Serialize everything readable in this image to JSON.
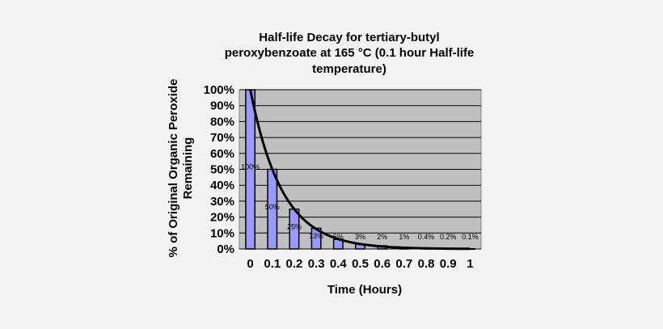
{
  "chart_data": {
    "type": "bar",
    "title": [
      "Half-life  Decay  for tertiary-butyl",
      "peroxybenzoate at 165 °C (0.1 hour Half-life",
      "temperature)"
    ],
    "xlabel": "Time  (Hours)",
    "ylabel": [
      "% of Original Organic Peroxide",
      "Remaining"
    ],
    "categories": [
      "0",
      "0.1",
      "0.2",
      "0.3",
      "0.4",
      "0.5",
      "0.6",
      "0.7",
      "0.8",
      "0.9",
      "1"
    ],
    "values": [
      100,
      50,
      25,
      13,
      6,
      3,
      2,
      1,
      0.4,
      0.2,
      0.1
    ],
    "data_labels": [
      "100%",
      "50%",
      "25%",
      "13%",
      "6%",
      "3%",
      "2%",
      "1%",
      "0.4%",
      "0.2%",
      "0.1%"
    ],
    "yticks": [
      "0%",
      "10%",
      "20%",
      "30%",
      "40%",
      "50%",
      "60%",
      "70%",
      "80%",
      "90%",
      "100%"
    ],
    "ylim": [
      0,
      100
    ],
    "curve": {
      "type": "exponential-decay",
      "half_life": 0.1
    },
    "grid": true,
    "colors": {
      "plot_bg": "#c0c0c0",
      "bar_fill": "#9999ff",
      "bar_stroke": "#000000",
      "curve": "#000000",
      "page_bg": "#f3f3f3"
    }
  }
}
